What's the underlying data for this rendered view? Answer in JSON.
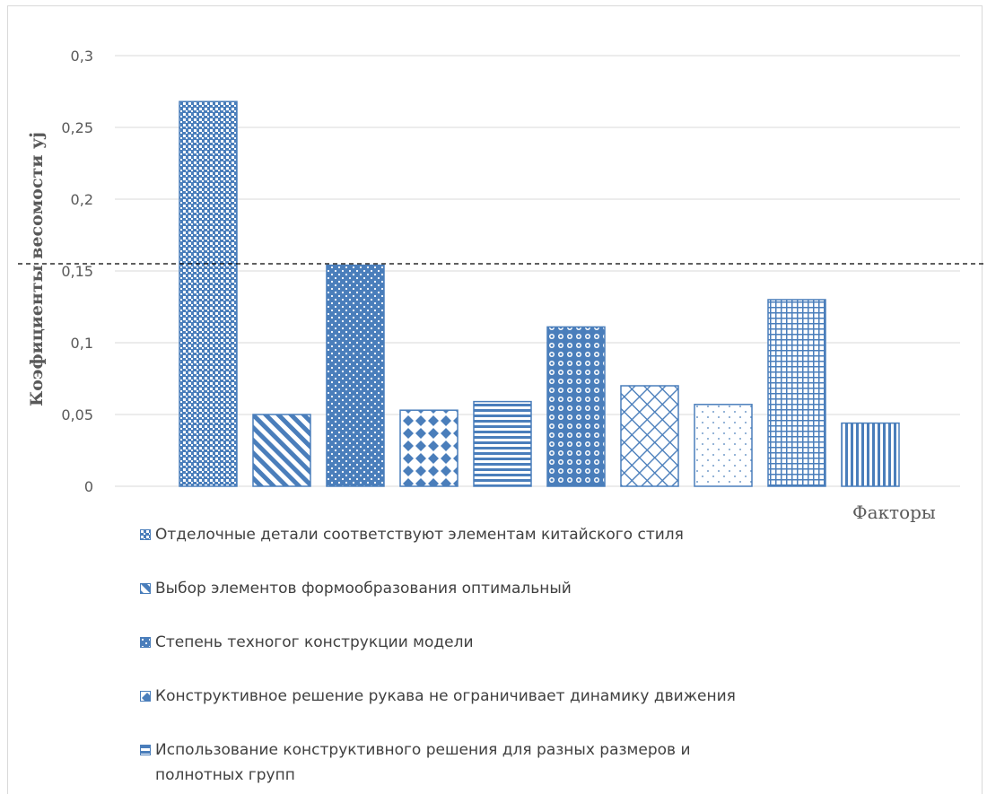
{
  "chart_data": {
    "type": "bar",
    "title": "",
    "xlabel": "Факторы",
    "ylabel": "Коэфициенты весомости уj",
    "ylim": [
      0,
      0.3
    ],
    "yticks": [
      "0",
      "0,05",
      "0,1",
      "0,15",
      "0,2",
      "0,25",
      "0,3"
    ],
    "ytick_values": [
      0,
      0.05,
      0.1,
      0.15,
      0.2,
      0.25,
      0.3
    ],
    "grid": true,
    "reference_line": 0.155,
    "legend_position": "bottom",
    "series": [
      {
        "name": "Отделочные детали соответствуют элементам китайского стиля",
        "value": 0.268,
        "pattern": "checker"
      },
      {
        "name": "Выбор элементов формообразования оптимальный",
        "value": 0.05,
        "pattern": "diagonal"
      },
      {
        "name": "Степень техногог конструкции модели",
        "value": 0.154,
        "pattern": "dots"
      },
      {
        "name": "Конструктивное решение рукава не ограничивает динамику движения",
        "value": 0.053,
        "pattern": "diamonds"
      },
      {
        "name": "Использование конструктивного решения для разных размеров и полнотных групп",
        "value": 0.059,
        "pattern": "hlines"
      },
      {
        "name": "",
        "value": 0.111,
        "pattern": "circles"
      },
      {
        "name": "",
        "value": 0.07,
        "pattern": "crosshatch"
      },
      {
        "name": "",
        "value": 0.057,
        "pattern": "sparse"
      },
      {
        "name": "",
        "value": 0.13,
        "pattern": "grid"
      },
      {
        "name": "",
        "value": 0.044,
        "pattern": "vlines"
      }
    ],
    "colors": {
      "bar": "#4a7ebb",
      "grid": "#d9d9d9",
      "axis_text": "#595959"
    }
  }
}
